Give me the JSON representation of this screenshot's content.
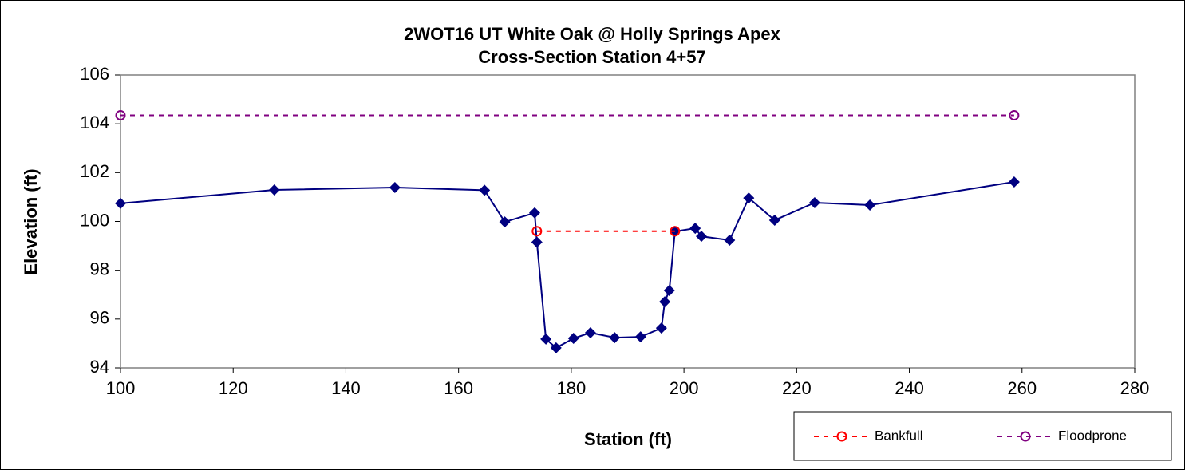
{
  "chart_data": {
    "type": "line",
    "title": "2WOT16 UT White Oak @ Holly Springs Apex",
    "subtitle": "Cross-Section Station 4+57",
    "x_label": "Station (ft)",
    "y_label": "Elevation (ft)",
    "xlim": [
      100,
      280
    ],
    "xticks": [
      100,
      120,
      140,
      160,
      180,
      200,
      220,
      240,
      260,
      280
    ],
    "ylim": [
      94,
      106
    ],
    "yticks": [
      94,
      96,
      98,
      100,
      102,
      104,
      106
    ],
    "legend": "lower right",
    "series": [
      {
        "color": "#000080",
        "marker": "diamond",
        "dash": false,
        "x": [
          100,
          127.3,
          148.7,
          164.6,
          168.2,
          173.5,
          173.9,
          175.5,
          177.3,
          180.4,
          183.4,
          187.7,
          192.3,
          196.0,
          196.6,
          197.4,
          198.4,
          202.0,
          203.1,
          208.1,
          211.5,
          216.1,
          223.2,
          233.0,
          258.6
        ],
        "values": [
          100.74,
          101.29,
          101.39,
          101.28,
          99.98,
          100.35,
          99.15,
          95.18,
          94.82,
          95.21,
          95.44,
          95.24,
          95.27,
          95.63,
          96.71,
          97.17,
          99.59,
          99.72,
          99.39,
          99.23,
          100.96,
          100.05,
          100.77,
          100.67,
          101.62
        ]
      },
      {
        "name": "Bankfull",
        "color": "#ff0000",
        "marker": "circle",
        "dash": true,
        "x": [
          173.9,
          198.4
        ],
        "values": [
          99.6,
          99.6
        ]
      },
      {
        "name": "Floodprone",
        "color": "#800080",
        "marker": "circle",
        "dash": true,
        "x": [
          100,
          258.6
        ],
        "values": [
          104.35,
          104.35
        ]
      }
    ]
  }
}
